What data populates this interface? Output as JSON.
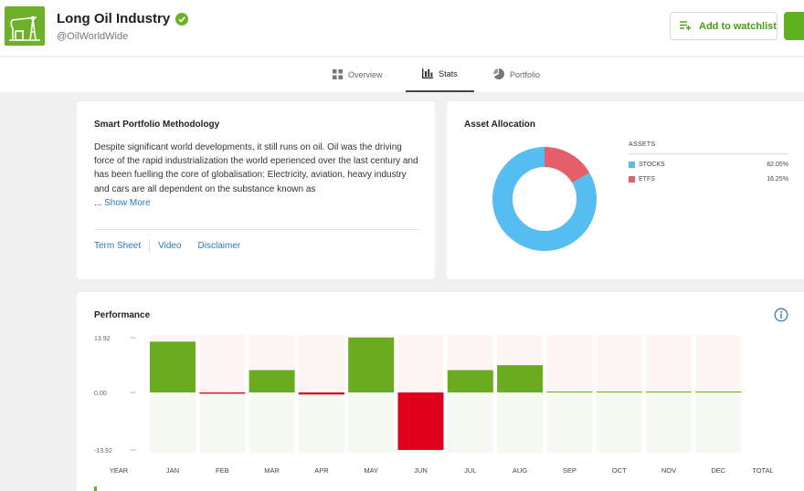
{
  "header": {
    "title": "Long Oil Industry",
    "handle": "@OilWorldWide",
    "watchlist_label": "Add to watchlist"
  },
  "tabs": [
    {
      "label": "Overview",
      "icon": "grid-icon",
      "active": false
    },
    {
      "label": "Stats",
      "icon": "bar-chart-icon",
      "active": true
    },
    {
      "label": "Portfolio",
      "icon": "pie-chart-icon",
      "active": false
    }
  ],
  "methodology": {
    "title": "Smart Portfolio Methodology",
    "description": "Despite significant world developments, it still runs on oil. Oil was the driving force of the rapid industrialization the world eperienced over the last century and has been fuelling the core of globalisation: Electricity, aviation, heavy industry and cars are all dependent on the substance known as",
    "ellipsis": "...",
    "show_more": "Show More",
    "links": [
      "Term Sheet",
      "Video",
      "Disclaimer"
    ]
  },
  "allocation": {
    "title": "Asset Allocation",
    "assets_heading": "ASSETS",
    "items": [
      {
        "name": "STOCKS",
        "pct_label": "82.05%",
        "value": 82.05,
        "color": "#56bdf0"
      },
      {
        "name": "ETFS",
        "pct_label": "16.25%",
        "value": 16.25,
        "color": "#e55f6a"
      }
    ]
  },
  "performance": {
    "title": "Performance",
    "chart_data": {
      "type": "bar",
      "title": "Performance",
      "categories": [
        "JAN",
        "FEB",
        "MAR",
        "APR",
        "MAY",
        "JUN",
        "JUL",
        "AUG",
        "SEP",
        "OCT",
        "NOV",
        "DEC"
      ],
      "values": [
        12.3,
        -0.3,
        5.4,
        -0.5,
        13.3,
        -13.92,
        5.4,
        6.6,
        0.1,
        0.1,
        0.1,
        0.1
      ],
      "first_label": "YEAR",
      "last_label": "TOTAL",
      "y_ticks": [
        "13.92",
        "0.00",
        "-13.92"
      ],
      "ylim": [
        -13.92,
        13.92
      ],
      "positive_color": "#6aab1f",
      "negative_color": "#e0001b"
    }
  }
}
